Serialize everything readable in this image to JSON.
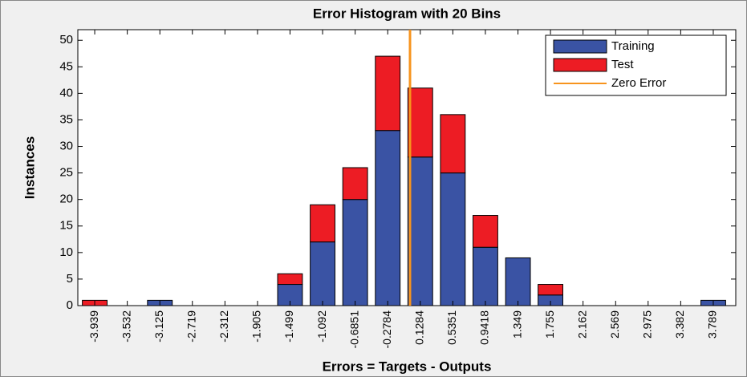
{
  "chart_data": {
    "type": "bar",
    "stacked": true,
    "title": "Error Histogram with 20 Bins",
    "xlabel": "Errors = Targets - Outputs",
    "ylabel": "Instances",
    "x": [
      -3.939,
      -3.532,
      -3.125,
      -2.719,
      -2.312,
      -1.905,
      -1.499,
      -1.092,
      -0.6851,
      -0.2784,
      0.1284,
      0.5351,
      0.9418,
      1.349,
      1.755,
      2.162,
      2.569,
      2.975,
      3.382,
      3.789
    ],
    "series": [
      {
        "name": "Training",
        "color": "#3a53a4",
        "values": [
          0,
          0,
          1,
          0,
          0,
          0,
          4,
          12,
          20,
          33,
          28,
          25,
          11,
          9,
          2,
          0,
          0,
          0,
          0,
          1
        ]
      },
      {
        "name": "Test",
        "color": "#ed1c24",
        "values": [
          1,
          0,
          0,
          0,
          0,
          0,
          2,
          7,
          6,
          14,
          13,
          11,
          6,
          0,
          2,
          0,
          0,
          0,
          0,
          0
        ]
      }
    ],
    "lines": [
      {
        "name": "Zero Error",
        "color": "#f7941d",
        "x": 0
      }
    ],
    "xlim": [
      -4.15,
      4.07
    ],
    "ylim": [
      0,
      52
    ],
    "yticks": [
      0,
      5,
      10,
      15,
      20,
      25,
      30,
      35,
      40,
      45,
      50
    ],
    "legend": "upper right"
  }
}
